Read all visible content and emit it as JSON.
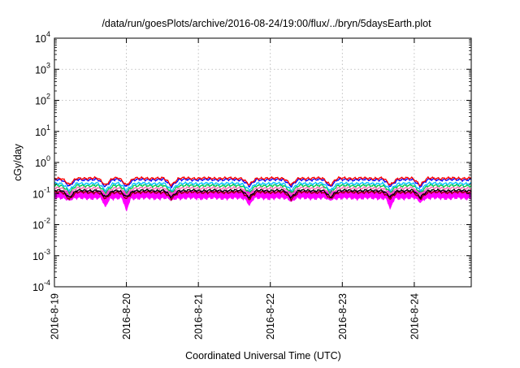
{
  "chart_data": {
    "type": "line",
    "title": "/data/run/goesPlots/archive/2016-08-24/19:00/flux/../bryn/5daysEarth.plot",
    "xlabel": "Coordinated Universal Time (UTC)",
    "ylabel": "cGy/day",
    "yscale": "log",
    "ylim": [
      0.0001,
      10000
    ],
    "xlim": [
      "2016-08-19",
      "2016-08-24 19:00"
    ],
    "grid": true,
    "x_ticks": [
      "2016-8-19",
      "2016-8-20",
      "2016-8-21",
      "2016-8-22",
      "2016-8-23",
      "2016-8-24"
    ],
    "y_ticks": [
      {
        "base": "10",
        "exp": "-4"
      },
      {
        "base": "10",
        "exp": "-3"
      },
      {
        "base": "10",
        "exp": "-2"
      },
      {
        "base": "10",
        "exp": "-1"
      },
      {
        "base": "10",
        "exp": "0"
      },
      {
        "base": "10",
        "exp": "1"
      },
      {
        "base": "10",
        "exp": "2"
      },
      {
        "base": "10",
        "exp": "3"
      },
      {
        "base": "10",
        "exp": "4"
      }
    ],
    "series": [
      {
        "color": "#ff00ff",
        "style": "filled-band",
        "low": 0.07,
        "high": 0.12,
        "dips": [
          [
            "2016-08-19 05:00",
            0.06
          ],
          [
            "2016-08-19 17:00",
            0.035
          ],
          [
            "2016-08-20 00:00",
            0.025
          ],
          [
            "2016-08-20 15:00",
            0.06
          ],
          [
            "2016-08-21 17:00",
            0.04
          ],
          [
            "2016-08-22 07:00",
            0.055
          ],
          [
            "2016-08-22 20:00",
            0.06
          ],
          [
            "2016-08-23 16:00",
            0.03
          ],
          [
            "2016-08-24 02:00",
            0.05
          ]
        ]
      },
      {
        "color": "#990000",
        "style": "line",
        "level": 0.11
      },
      {
        "color": "#000000",
        "style": "line",
        "level": 0.125
      },
      {
        "color": "#ff69b4",
        "style": "line",
        "level": 0.15
      },
      {
        "color": "#00cc44",
        "style": "line",
        "level": 0.18
      },
      {
        "color": "#00bfff",
        "style": "line",
        "level": 0.21
      },
      {
        "color": "#0000ff",
        "style": "line",
        "level": 0.28
      },
      {
        "color": "#ff0000",
        "style": "line",
        "level": 0.31
      }
    ]
  }
}
